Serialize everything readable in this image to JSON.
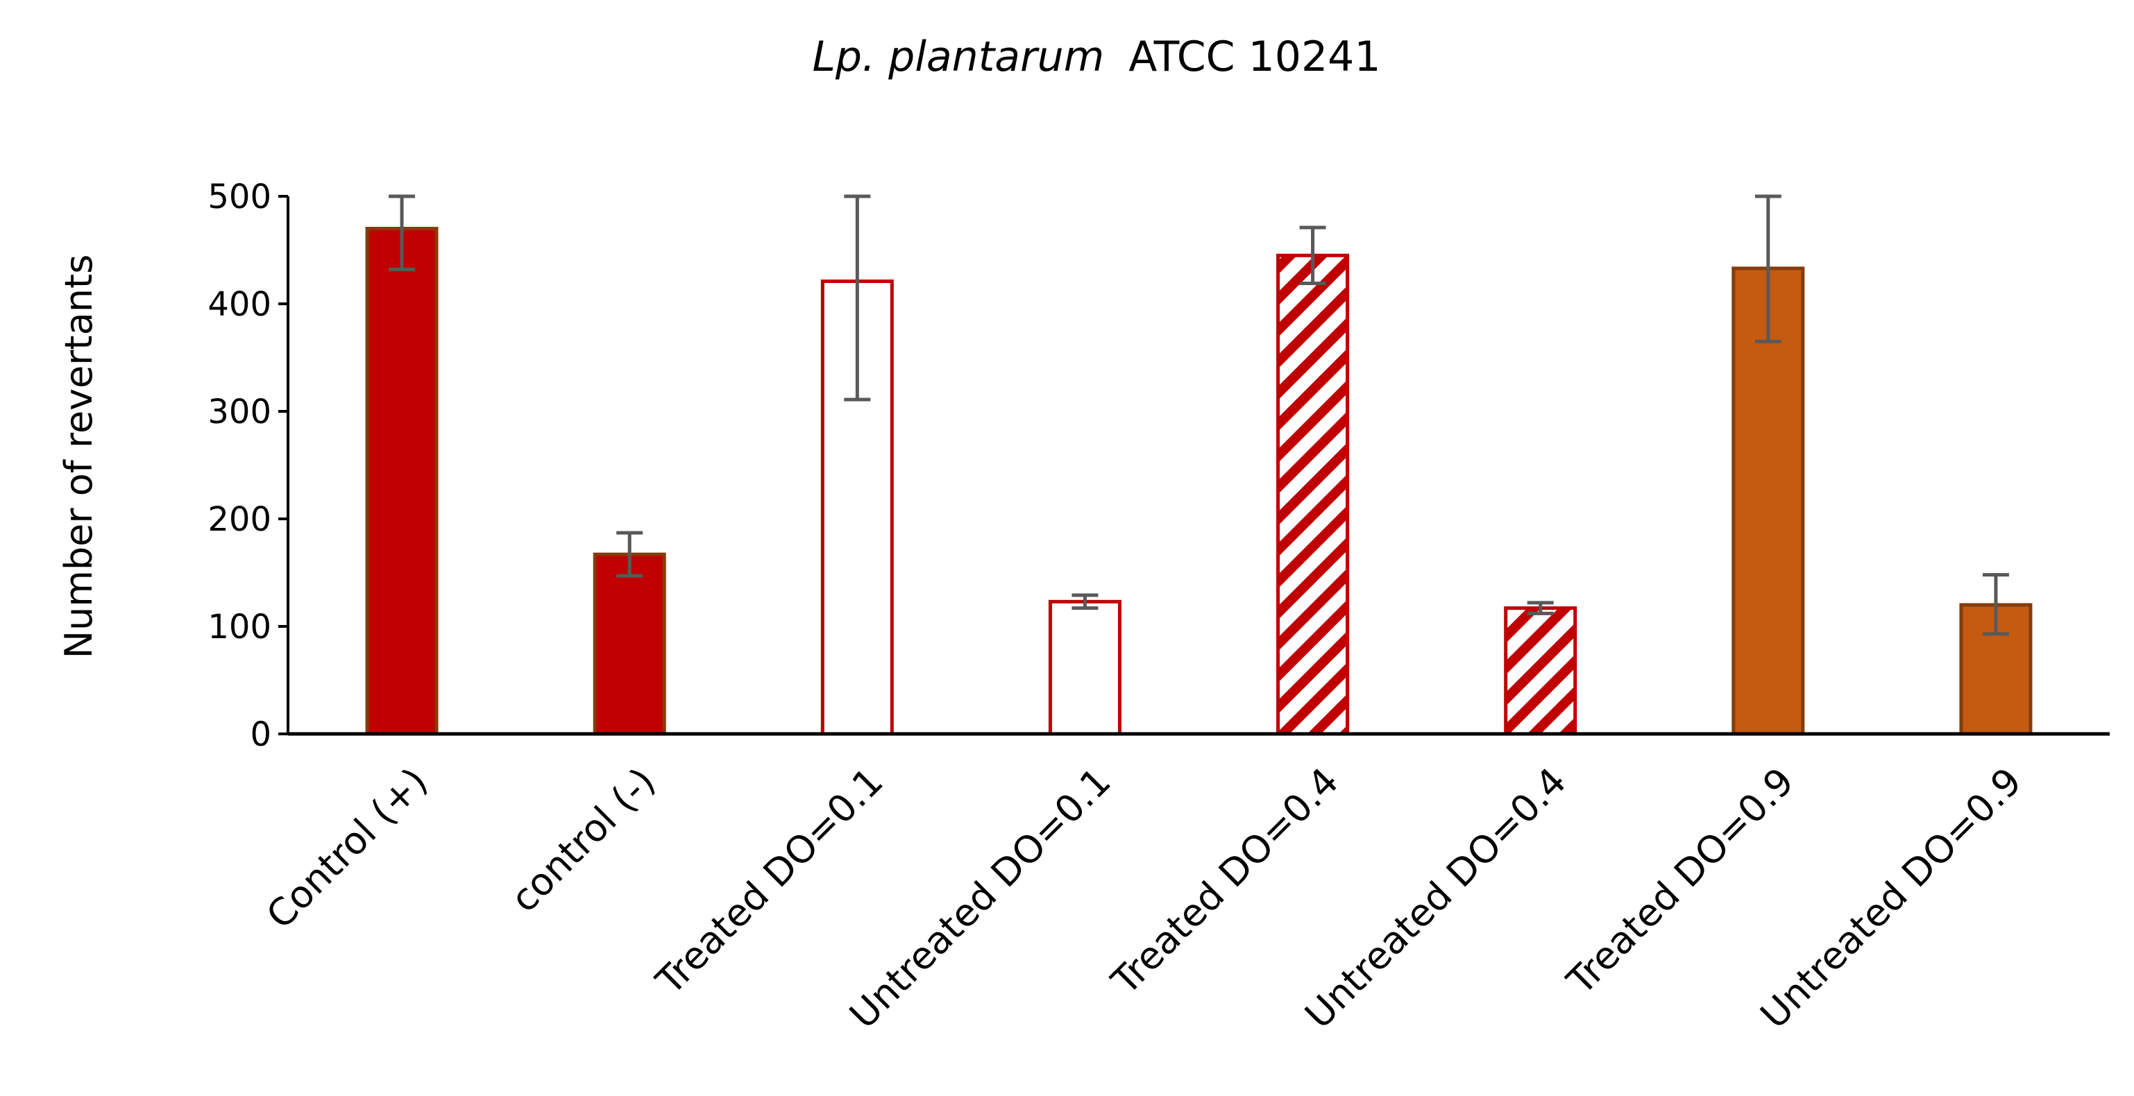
{
  "chart_data": {
    "type": "bar",
    "title": {
      "italic_part": "Lp. plantarum",
      "regular_part": "ATCC 10241"
    },
    "xlabel": "",
    "ylabel": "Number of revertants",
    "ylim": [
      0,
      500
    ],
    "yticks": [
      0,
      100,
      200,
      300,
      400,
      500
    ],
    "grid": false,
    "legend": "none",
    "categories": [
      "Control (+)",
      "control (-)",
      "Treated DO=0.1",
      "Untreated DO=0.1",
      "Treated DO=0.4",
      "Untreated DO=0.4",
      "Treated DO=0.9",
      "Untreated DO=0.9"
    ],
    "values": [
      470,
      167,
      421,
      123,
      445,
      117,
      433,
      120
    ],
    "error_low": [
      432,
      147,
      311,
      117,
      419,
      112,
      365,
      93
    ],
    "error_high": [
      500,
      187,
      500,
      129,
      471,
      122,
      500,
      148
    ],
    "fill_styles": [
      "solid",
      "solid",
      "empty",
      "empty",
      "hatched",
      "hatched",
      "solid",
      "solid"
    ],
    "colors": {
      "dark_red": "#c00000",
      "orange": "#c55a11",
      "bar_outline": "#843c0c",
      "error_bar": "#595959",
      "axis": "#000000"
    },
    "bar_colors": [
      "#c00000",
      "#c00000",
      "#c00000",
      "#c00000",
      "#c00000",
      "#c00000",
      "#c55a11",
      "#c55a11"
    ]
  }
}
